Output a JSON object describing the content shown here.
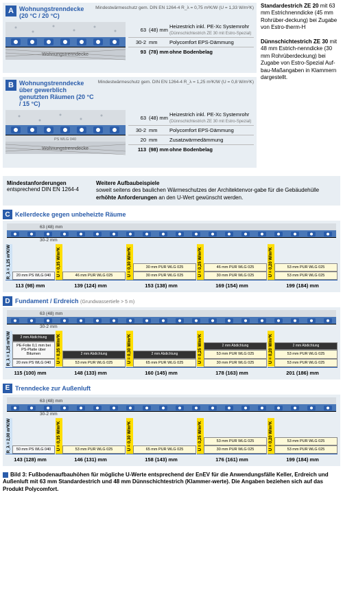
{
  "colors": {
    "accent": "#2a5caa",
    "bg": "#e8eef3",
    "yellow": "#ffde00",
    "lightyellow": "#fdf9d8",
    "lightblue": "#cfe3f5"
  },
  "panelA": {
    "badge": "A",
    "title": "Wohnungstrenndecke (20 °C / 20 °C)",
    "meta": "Mindestwärmeschutz gem. DIN EN 1264-4\nR_λ = 0,75 m²K/W (U = 1,33 W/m²K)",
    "rows": [
      {
        "v1": "63",
        "v2": "(48) mm",
        "desc": "Heizestrich inkl. PE-Xc Systemrohr",
        "sub": "(Dünnschichtestrich ZE 30 mit Estro-Spezial)"
      },
      {
        "v1": "30-2",
        "v2": "mm",
        "desc": "Polycomfort EPS-Dämmung"
      },
      {
        "v1": "93",
        "v2": "(78) mm",
        "desc": "ohne Bodenbelag"
      }
    ],
    "base": "Wohnungstrenndecke"
  },
  "panelB": {
    "badge": "B",
    "title": "Wohnungstrenndecke über gewerblich genutzten Räumen (20 °C / 15 °C)",
    "meta": "Mindestwärmeschutz gem. DIN EN 1264-4\nR_λ = 1,25 m²K/W (U = 0,8 W/m²K)",
    "rows": [
      {
        "v1": "63",
        "v2": "(48) mm",
        "desc": "Heizestrich inkl. PE-Xc Systemrohr",
        "sub": "(Dünnschichtestrich ZE 30 mit Estro-Spezial)"
      },
      {
        "v1": "30-2",
        "v2": "mm",
        "desc": "Polycomfort EPS-Dämmung"
      },
      {
        "v1": "20",
        "v2": "mm",
        "desc": "Zusatzwärmedämmung"
      },
      {
        "v1": "113",
        "v2": "(98) mm",
        "desc": "ohne Bodenbelag"
      }
    ],
    "base": "Wohnungstrenndecke",
    "extra": "PS WLG 040"
  },
  "side1": {
    "h": "Standardestrich ZE 20",
    "t": "mit 63 mm Estrichnenndicke (45 mm Rohrüber-deckung) bei Zugabe von Estro-therm-H"
  },
  "side2": {
    "h": "Dünnschichtestrich ZE 30",
    "t": "mit 48 mm Estrich-nenndicke (30 mm Rohrüberdeckung) bei Zugabe von Estro-Spezial Auf-bau-Maßangaben in Klammern dargestellt."
  },
  "mid": {
    "l1": "Mindestanforderungen",
    "l2": "entsprechend DIN EN 1264-4",
    "r1": "Weitere Aufbaubeispiele",
    "r2": "soweit seitens des baulichen Wärmeschutzes der Architektenvor-gabe für die Gebäudehülle ",
    "rb": "erhöhte Anforderungen",
    "r3": " an den U-Wert gewünscht werden."
  },
  "sectionC": {
    "badge": "C",
    "title": "Kellerdecke gegen unbeheizte Räume",
    "strip": {
      "top": "63 (48)  mm",
      "bot": "30-2  mm"
    },
    "ref": {
      "r": "R_λ = 1,25 m²K/W",
      "layers": [
        "20 mm PS WLG 040"
      ],
      "total": "113 (98)  mm"
    },
    "vars": [
      {
        "u": "U = 0,35 W/m²K",
        "layers": [
          "46 mm PUR WLG 025"
        ],
        "total": "139 (124)  mm"
      },
      {
        "u": "U = 0,30 W/m²K",
        "layers": [
          "30 mm PUR WLG 025",
          "30 mm PUR WLG 025"
        ],
        "total": "153 (138)  mm"
      },
      {
        "u": "U = 0,25 W/m²K",
        "layers": [
          "30 mm PUR WLG 025",
          "46 mm PUR WLG 025"
        ],
        "total": "169 (154)  mm"
      },
      {
        "u": "U = 0,20 W/m²K",
        "layers": [
          "53 mm PUR WLG 025",
          "53 mm PUR WLG 025"
        ],
        "total": "199 (184)  mm"
      }
    ]
  },
  "sectionD": {
    "badge": "D",
    "title": "Fundament / Erdreich",
    "sub": "(Grundwassertiefe > 5 m)",
    "strip": {
      "top": "63 (48)  mm",
      "bot": "30-2  mm"
    },
    "ref": {
      "r": "R_λ = 1,25 m²K/W",
      "layers": [
        "20 mm PS WLG 040",
        "PE-Folie 0,1 mm bei PS-Platte über Bitumen",
        "2 mm Abdichtung"
      ],
      "total": "115 (100)  mm"
    },
    "vars": [
      {
        "u": "U = 0,35 W/m²K",
        "layers": [
          "53 mm PUR WLG 025",
          "2 mm Abdichtung"
        ],
        "total": "148 (133)  mm"
      },
      {
        "u": "U = 0,30 W/m²K",
        "layers": [
          "65 mm PUR WLG 025",
          "2 mm Abdichtung"
        ],
        "total": "160 (145)  mm"
      },
      {
        "u": "U = 0,25 W/m²K",
        "layers": [
          "30 mm PUR WLG 025",
          "53 mm PUR WLG 025",
          "2 mm Abdichtung"
        ],
        "total": "178 (163)  mm"
      },
      {
        "u": "U = 0,20 W/m²K",
        "layers": [
          "53 mm PUR WLG 025",
          "53 mm PUR WLG 025",
          "2 mm Abdichtung"
        ],
        "total": "201 (186)  mm"
      }
    ]
  },
  "sectionE": {
    "badge": "E",
    "title": "Trenndecke zur Außenluft",
    "strip": {
      "top": "63 (48)  mm",
      "bot": "30-2  mm"
    },
    "ref": {
      "r": "R_λ = 2,00 m²K/W",
      "layers": [
        "50 mm PS WLG 040"
      ],
      "total": "143 (128)  mm"
    },
    "vars": [
      {
        "u": "U = 0,35 W/m²K",
        "layers": [
          "53 mm PUR WLG 025"
        ],
        "total": "146 (131)  mm"
      },
      {
        "u": "U = 0,30 W/m²K",
        "layers": [
          "65 mm PUR WLG 025"
        ],
        "total": "158 (143)  mm"
      },
      {
        "u": "U = 0,25 W/m²K",
        "layers": [
          "30 mm PUR WLG 025",
          "53 mm PUR WLG 025"
        ],
        "total": "176 (161)  mm"
      },
      {
        "u": "U = 0,20 W/m²K",
        "layers": [
          "53 mm PUR WLG 025",
          "53 mm PUR WLG 025"
        ],
        "total": "199 (184)  mm"
      }
    ]
  },
  "caption": {
    "b": "Bild 3: Fußbodenaufbauhöhen für mögliche U-Werte entsprechend der EnEV für die Anwendungsfälle Keller, Erdreich und Außenluft mit 63 mm Standardestrich und 48 mm Dünnschichtestrich (Klammer-werte). Die Angaben beziehen sich auf das Produkt Polycomfort."
  }
}
